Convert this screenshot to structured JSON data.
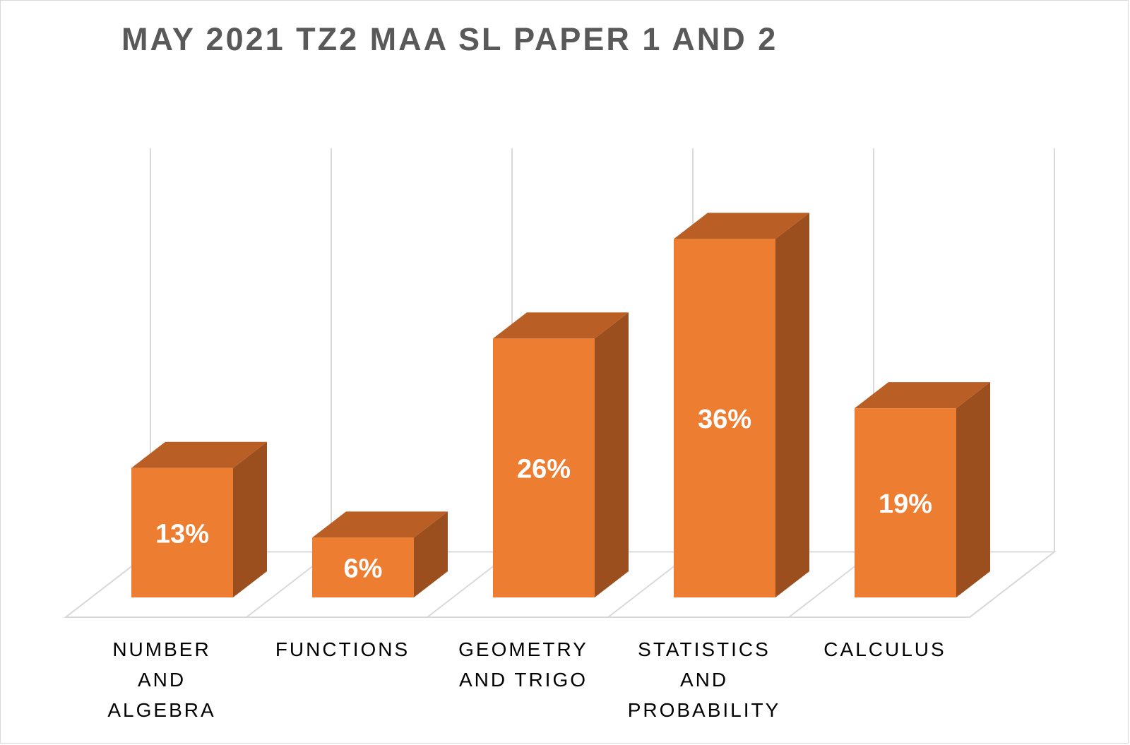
{
  "chart_data": {
    "type": "bar",
    "title": "MAY 2021 TZ2 MAA SL PAPER 1 AND 2",
    "categories": [
      "NUMBER\nAND\nALGEBRA",
      "FUNCTIONS",
      "GEOMETRY\nAND TRIGO",
      "STATISTICS\nAND\nPROBABILITY",
      "CALCULUS"
    ],
    "values": [
      13,
      6,
      26,
      36,
      19
    ],
    "data_labels": [
      "13%",
      "6%",
      "26%",
      "36%",
      "19%"
    ],
    "ylim": [
      0,
      40
    ],
    "grid": true,
    "legend": "none",
    "style": "3d-column",
    "colors": {
      "front": "#ED7D31",
      "top": "#B95E24",
      "side": "#9B4F1F"
    }
  }
}
